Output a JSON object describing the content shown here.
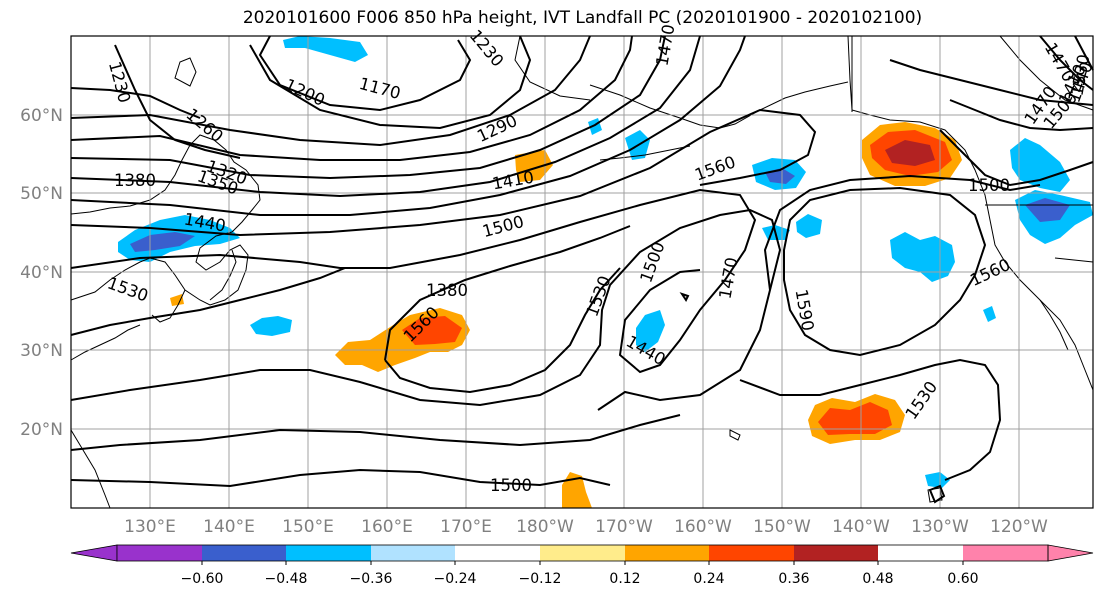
{
  "title": "2020101600 F006 850 hPa height, IVT Landfall PC (2020101900 - 2020102100)",
  "lat_labels": [
    "60°N",
    "50°N",
    "40°N",
    "30°N",
    "20°N"
  ],
  "lon_labels": [
    "130°E",
    "140°E",
    "150°E",
    "160°E",
    "170°E",
    "180°W",
    "170°W",
    "160°W",
    "150°W",
    "140°W",
    "130°W",
    "120°W"
  ],
  "contour_labels": [
    "1230",
    "1200",
    "1170",
    "1230",
    "1470",
    "1470",
    "1440",
    "1380",
    "1260",
    "1290",
    "1320",
    "1350",
    "1380",
    "1410",
    "1560",
    "1410",
    "1500",
    "1500",
    "1440",
    "1500",
    "1560",
    "1470",
    "1530",
    "1500",
    "1530",
    "1590",
    "1560",
    "1440",
    "1530",
    "1470",
    "1500",
    "1530"
  ],
  "colorbar": {
    "ticks": [
      "−0.60",
      "−0.48",
      "−0.36",
      "−0.24",
      "−0.12",
      "0.12",
      "0.24",
      "0.36",
      "0.48",
      "0.60"
    ],
    "colors": [
      "#9932cc",
      "#00008b",
      "#3a5fcd",
      "#00bfff",
      "#b0e2ff",
      "#ffffff",
      "#ffec8b",
      "#ffa500",
      "#ff4500",
      "#b22222",
      "#ff82ab"
    ]
  }
}
